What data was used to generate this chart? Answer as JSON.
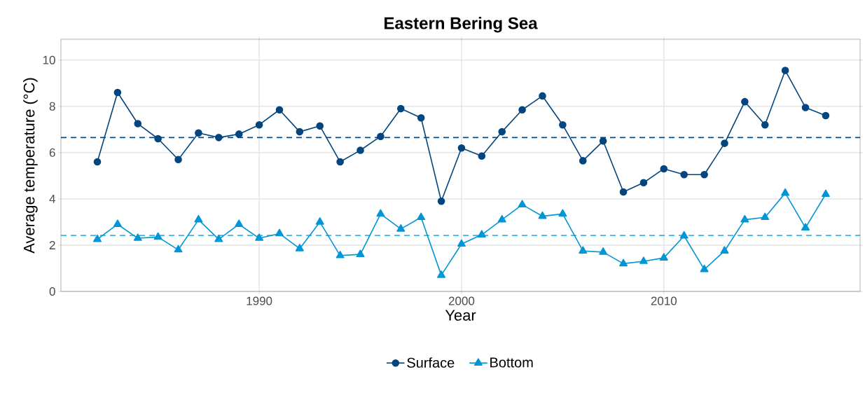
{
  "chart_data": {
    "type": "line",
    "title": "Eastern Bering Sea",
    "xlabel": "Year",
    "ylabel": "Average temperature (°C)",
    "x": [
      1982,
      1983,
      1984,
      1985,
      1986,
      1987,
      1988,
      1989,
      1990,
      1991,
      1992,
      1993,
      1994,
      1995,
      1996,
      1997,
      1998,
      1999,
      2000,
      2001,
      2002,
      2003,
      2004,
      2005,
      2006,
      2007,
      2008,
      2009,
      2010,
      2011,
      2012,
      2013,
      2014,
      2015,
      2016,
      2017,
      2018
    ],
    "series": [
      {
        "name": "Surface",
        "color": "#03457f",
        "marker": "circle",
        "values": [
          5.6,
          8.6,
          7.25,
          6.6,
          5.7,
          6.85,
          6.65,
          6.8,
          7.2,
          7.85,
          6.9,
          7.15,
          5.6,
          6.1,
          6.7,
          7.9,
          7.5,
          3.9,
          6.2,
          5.85,
          6.9,
          7.85,
          8.45,
          7.2,
          5.65,
          6.5,
          4.3,
          4.7,
          5.3,
          5.05,
          5.05,
          6.4,
          8.2,
          7.2,
          9.55,
          7.95,
          7.6
        ]
      },
      {
        "name": "Bottom",
        "color": "#0096d6",
        "marker": "triangle",
        "values": [
          2.25,
          2.9,
          2.3,
          2.35,
          1.8,
          3.1,
          2.25,
          2.9,
          2.3,
          2.5,
          1.85,
          3.0,
          1.55,
          1.6,
          3.35,
          2.7,
          3.2,
          0.7,
          2.05,
          2.45,
          3.1,
          3.75,
          3.25,
          3.35,
          1.75,
          1.7,
          1.2,
          1.3,
          1.45,
          2.4,
          0.95,
          1.75,
          3.1,
          3.2,
          4.25,
          2.75,
          4.2
        ]
      }
    ],
    "ref_lines": [
      {
        "axis": "y",
        "value": 6.65,
        "color": "#03457f",
        "line_style": "dashed"
      },
      {
        "axis": "y",
        "value": 2.42,
        "color": "#0096d6",
        "line_style": "dashed"
      }
    ],
    "xlim": [
      1980.2,
      2019.7
    ],
    "ylim": [
      0,
      10.9
    ],
    "xticks": [
      1990,
      2000,
      2010
    ],
    "yticks": [
      0,
      2,
      4,
      6,
      8,
      10
    ],
    "grid": true,
    "legend": "bottom",
    "line_style": "solid"
  }
}
